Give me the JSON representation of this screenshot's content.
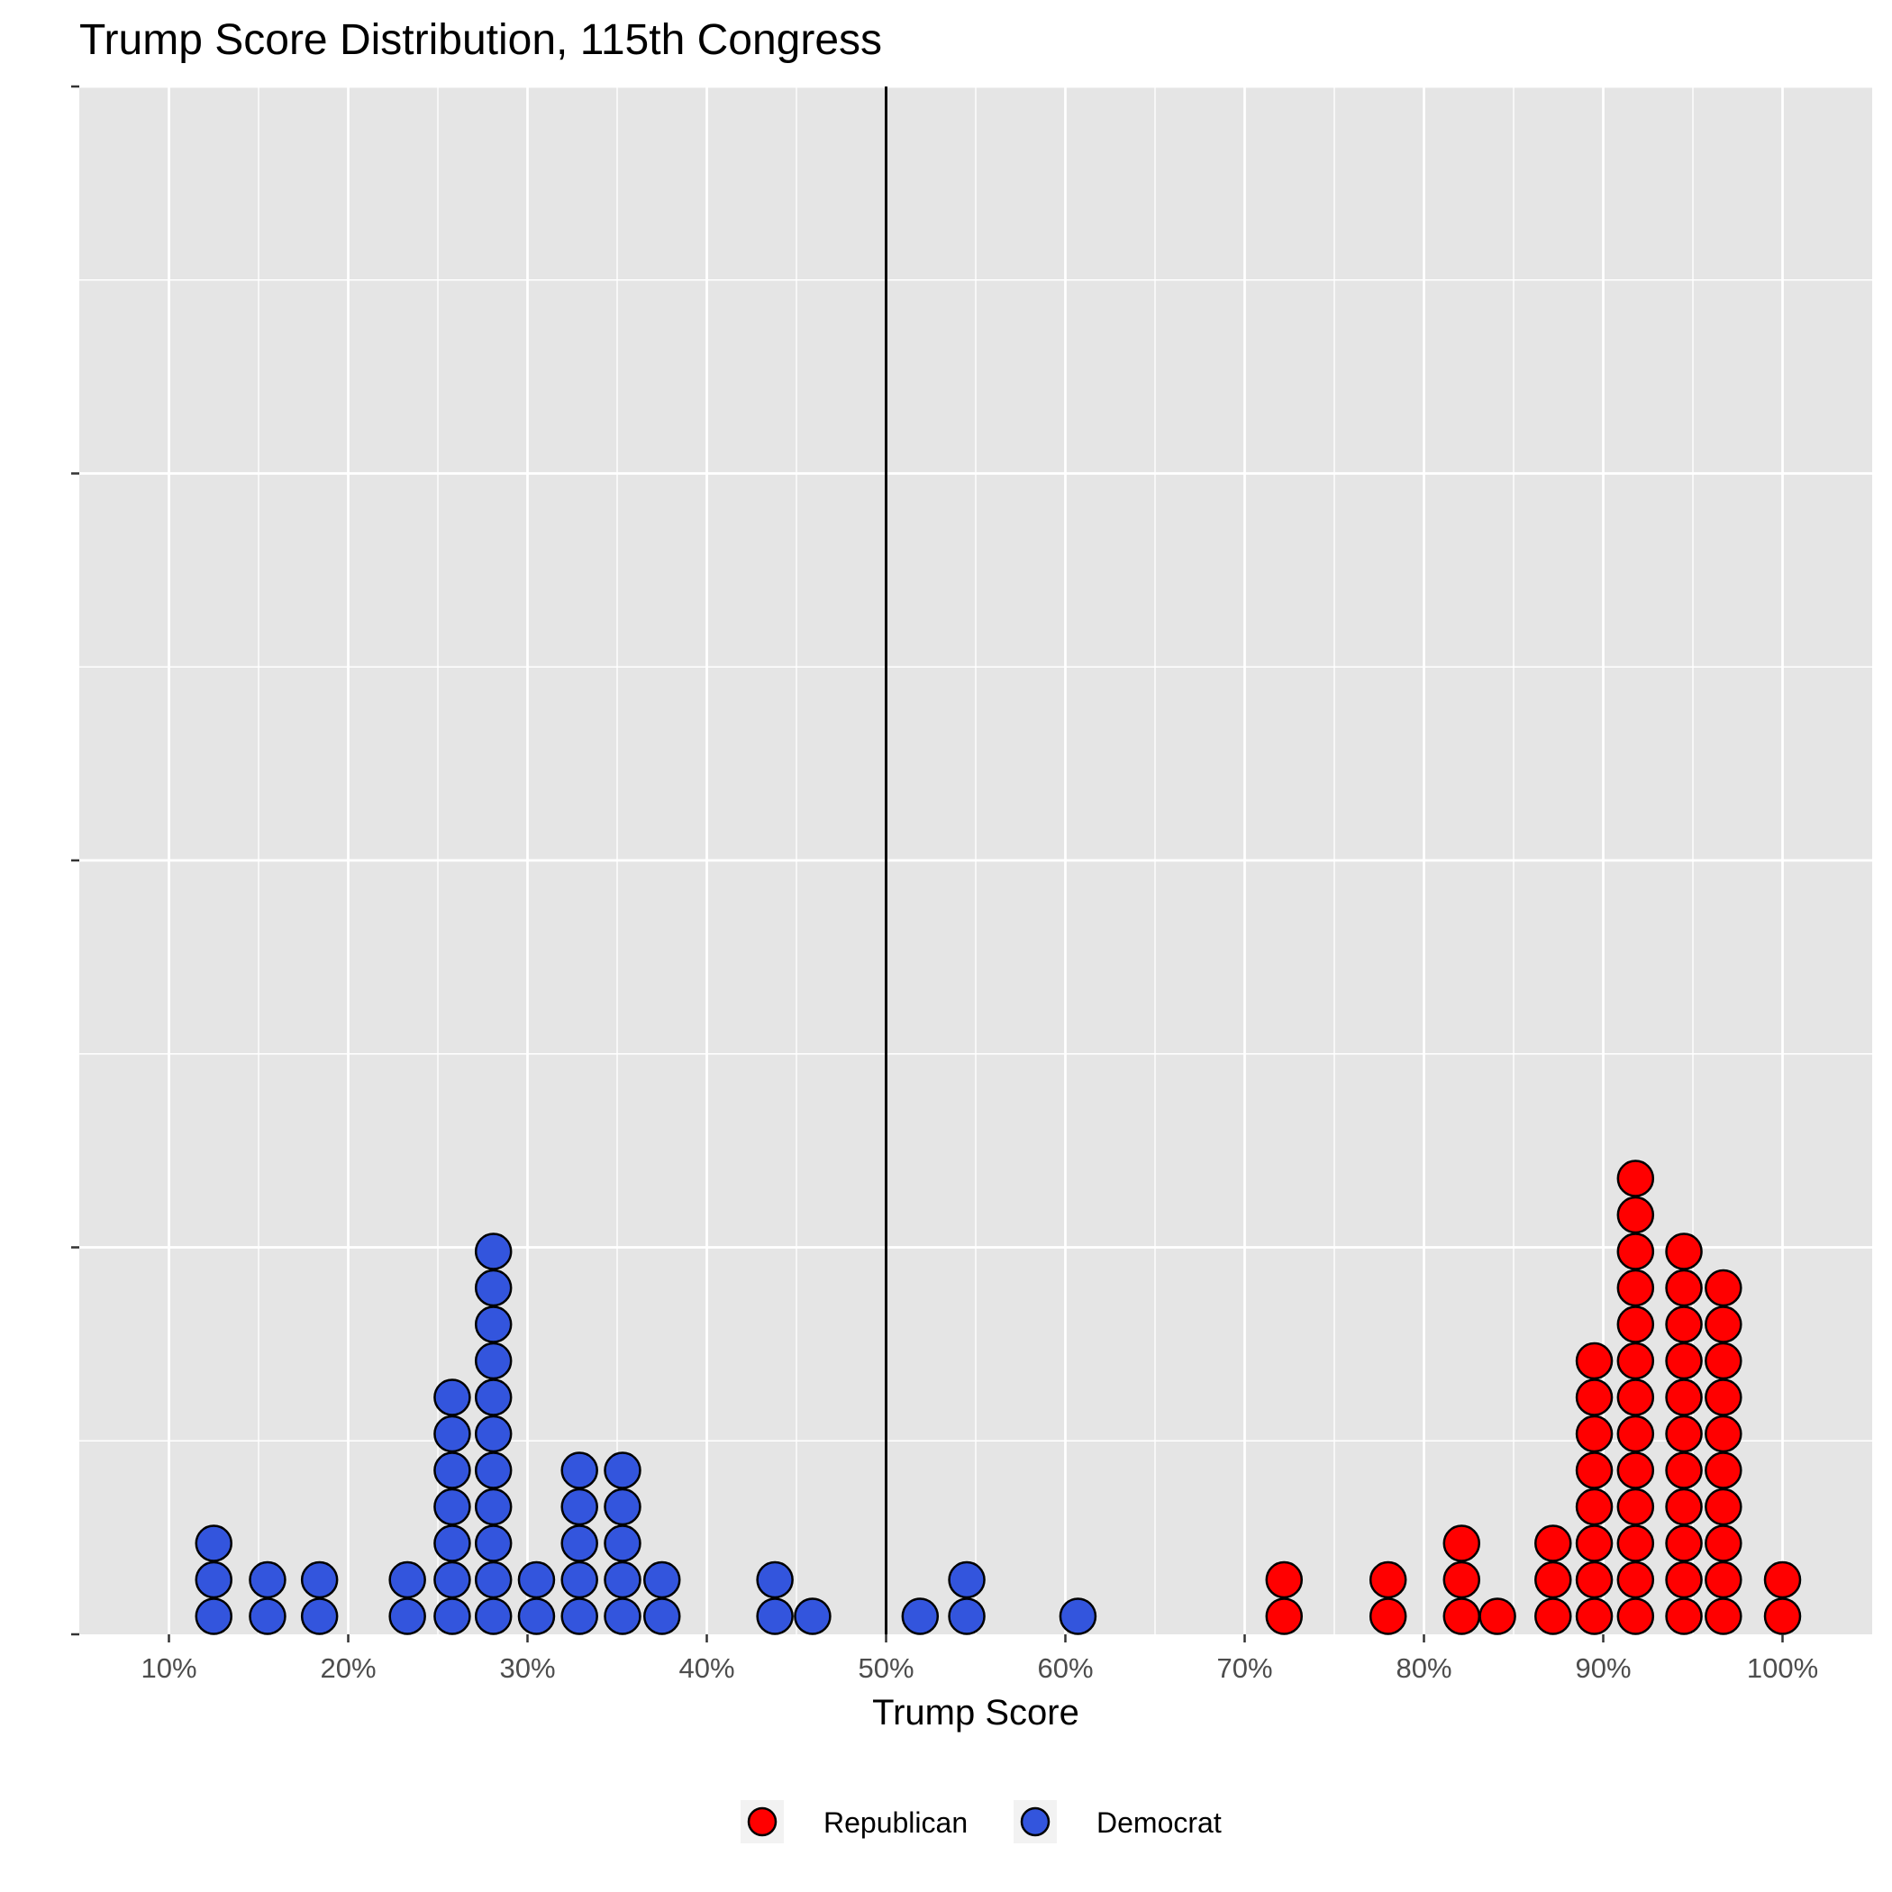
{
  "chart_data": {
    "type": "dotplot",
    "title": "Trump Score Distribution, 115th Congress",
    "xlabel": "Trump Score",
    "ylabel": "",
    "xlim": [
      0.05,
      1.05
    ],
    "x_ticks": [
      0.1,
      0.2,
      0.3,
      0.4,
      0.5,
      0.6,
      0.7,
      0.8,
      0.9,
      1.0
    ],
    "x_tick_labels": [
      "10%",
      "20%",
      "30%",
      "40%",
      "50%",
      "60%",
      "70%",
      "80%",
      "90%",
      "100%"
    ],
    "reference_line_x": 0.5,
    "grid": true,
    "legend_position": "bottom",
    "series": [
      {
        "name": "Republican",
        "color": "#ff0000",
        "stacks": [
          {
            "x": 0.722,
            "count": 2
          },
          {
            "x": 0.78,
            "count": 2
          },
          {
            "x": 0.821,
            "count": 3
          },
          {
            "x": 0.841,
            "count": 1
          },
          {
            "x": 0.872,
            "count": 3
          },
          {
            "x": 0.895,
            "count": 8
          },
          {
            "x": 0.918,
            "count": 13
          },
          {
            "x": 0.945,
            "count": 11
          },
          {
            "x": 0.967,
            "count": 10
          },
          {
            "x": 1.0,
            "count": 2
          }
        ]
      },
      {
        "name": "Democrat",
        "color": "#3355dd",
        "stacks": [
          {
            "x": 0.125,
            "count": 3
          },
          {
            "x": 0.155,
            "count": 2
          },
          {
            "x": 0.184,
            "count": 2
          },
          {
            "x": 0.233,
            "count": 2
          },
          {
            "x": 0.258,
            "count": 7
          },
          {
            "x": 0.281,
            "count": 11
          },
          {
            "x": 0.305,
            "count": 2
          },
          {
            "x": 0.329,
            "count": 5
          },
          {
            "x": 0.353,
            "count": 5
          },
          {
            "x": 0.375,
            "count": 2
          },
          {
            "x": 0.438,
            "count": 2
          },
          {
            "x": 0.459,
            "count": 1
          },
          {
            "x": 0.519,
            "count": 1
          },
          {
            "x": 0.545,
            "count": 2
          },
          {
            "x": 0.607,
            "count": 1
          }
        ]
      }
    ]
  }
}
